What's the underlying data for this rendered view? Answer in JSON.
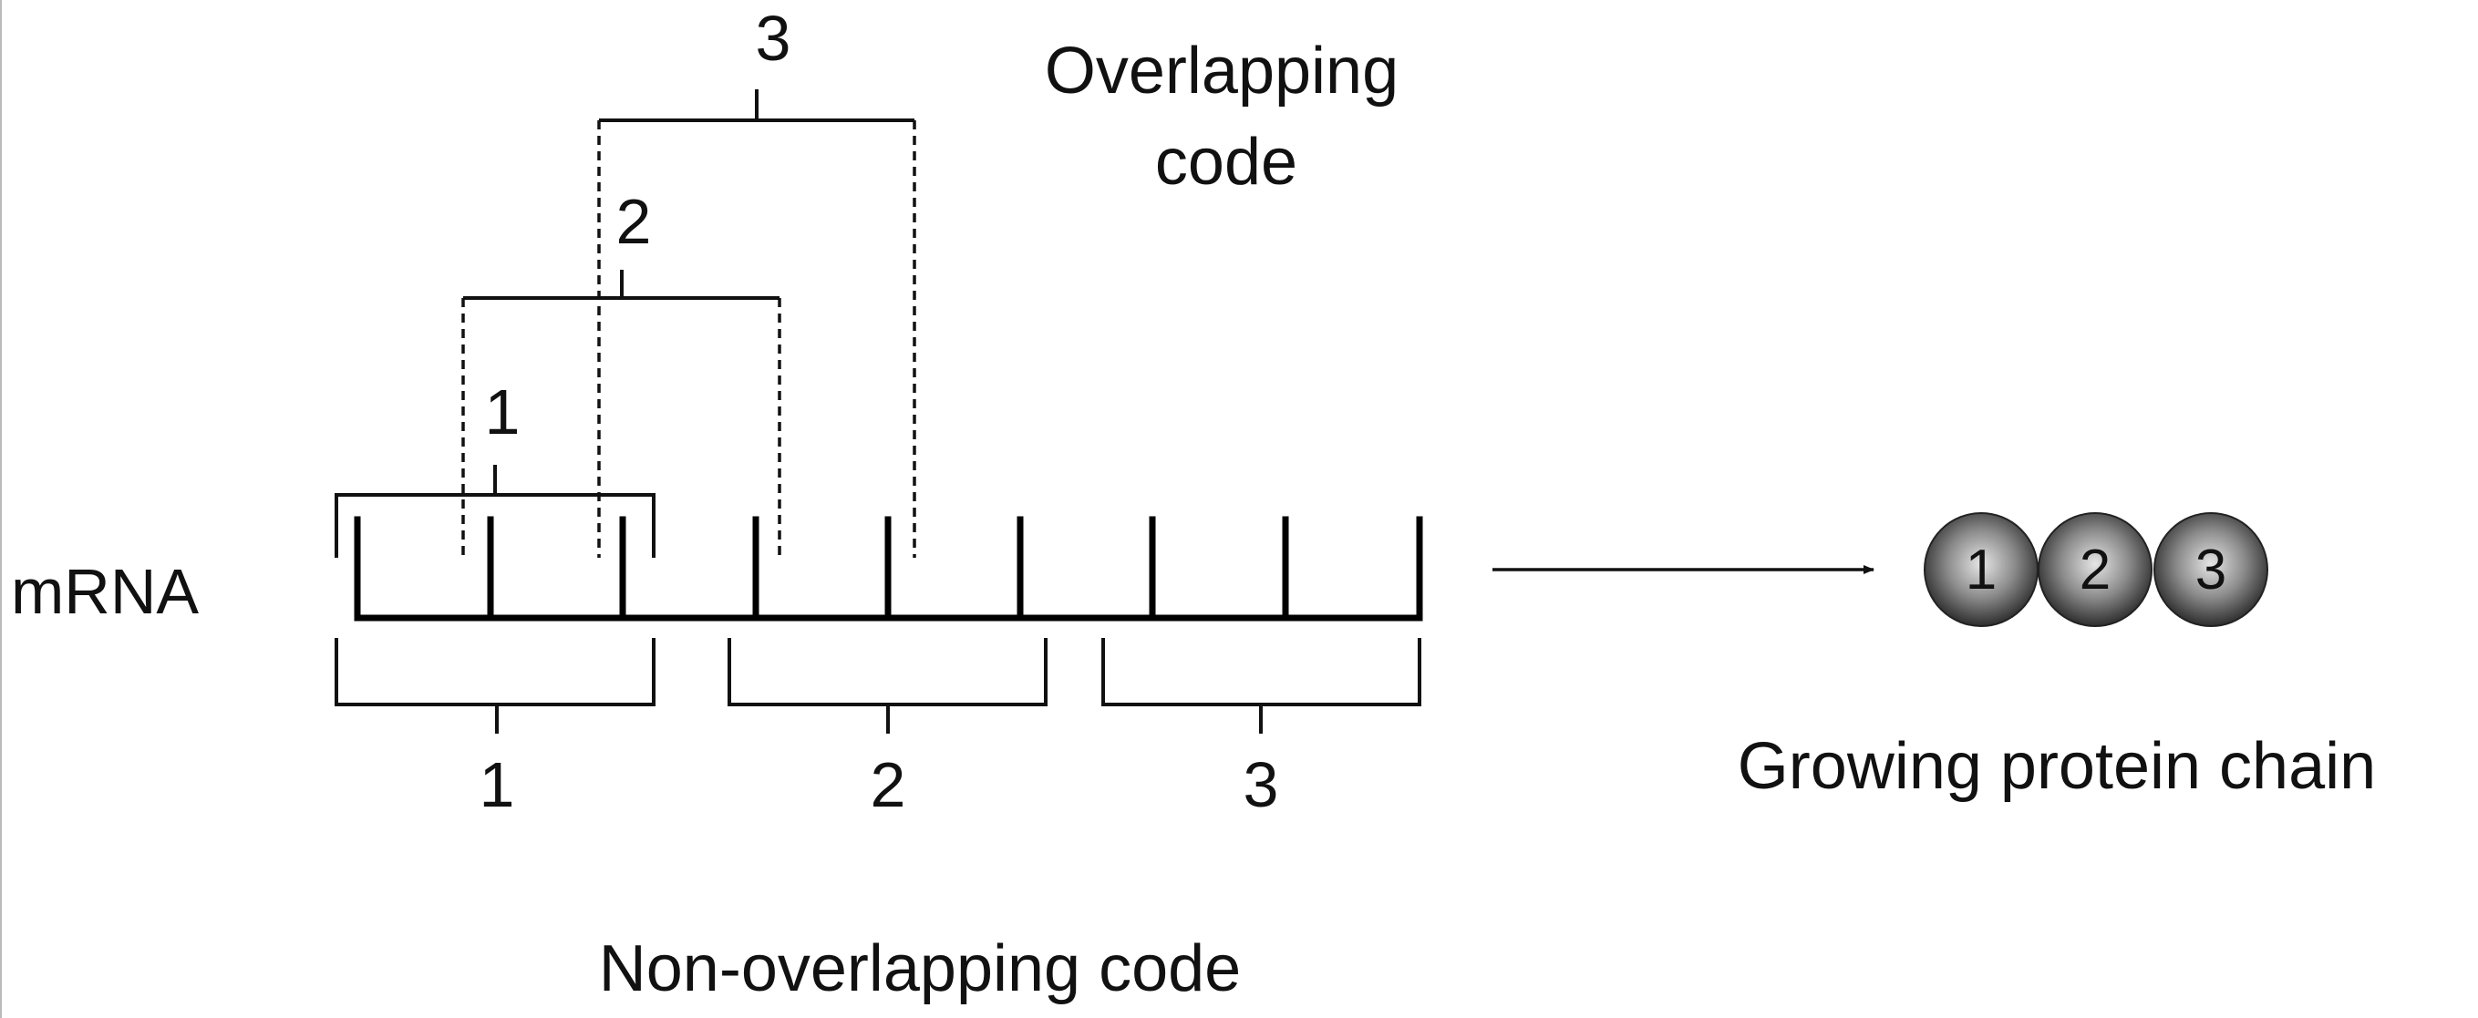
{
  "labels": {
    "mrna": "mRNA",
    "overlapping_line1": "Overlapping",
    "overlapping_line2": "code",
    "non_overlapping": "Non-overlapping code",
    "protein_chain": "Growing protein chain"
  },
  "overlapping_codons": [
    "1",
    "2",
    "3"
  ],
  "non_overlapping_codons": [
    "1",
    "2",
    "3"
  ],
  "protein_residues": [
    "1",
    "2",
    "3"
  ],
  "colors": {
    "line": "#111111",
    "bead_light": "#d8d8d8",
    "bead_dark": "#3a3a3a"
  }
}
